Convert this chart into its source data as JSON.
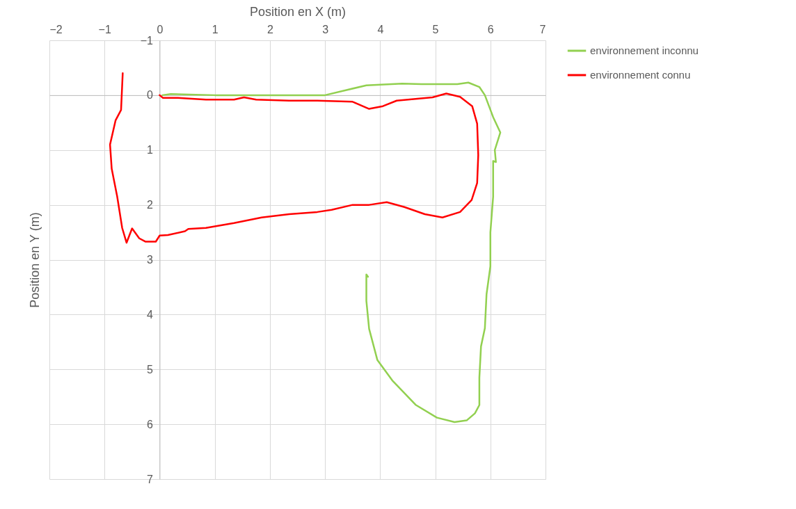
{
  "chart_data": {
    "type": "line",
    "xlabel": "Position en X (m)",
    "ylabel": "Position en Y (m)",
    "xlim": [
      -2,
      7
    ],
    "xticks": [
      -2,
      -1,
      0,
      1,
      2,
      3,
      4,
      5,
      6,
      7
    ],
    "ylim": [
      7,
      -1
    ],
    "yticks": [
      -1,
      0,
      1,
      2,
      3,
      4,
      5,
      6,
      7
    ],
    "grid": true,
    "legend": "right",
    "marker": "none",
    "line_style": "solid",
    "series": [
      {
        "name": "environnement inconnu",
        "color": "#92d050",
        "x": [
          0.05,
          0.2,
          1.0,
          2.0,
          3.0,
          3.75,
          4.4,
          4.75,
          5.4,
          5.6,
          5.8,
          5.9,
          6.05,
          6.18,
          6.08,
          6.1,
          6.05,
          6.05,
          6.0,
          6.0,
          5.93,
          5.9,
          5.83,
          5.8,
          5.8,
          5.72,
          5.57,
          5.35,
          5.03,
          4.65,
          4.22,
          3.95,
          3.8,
          3.75,
          3.75,
          3.78
        ],
        "values": [
          0.0,
          -0.02,
          0.0,
          0.0,
          0.0,
          -0.18,
          -0.21,
          -0.2,
          -0.2,
          -0.23,
          -0.15,
          0.0,
          0.4,
          0.68,
          1.0,
          1.22,
          1.2,
          1.85,
          2.5,
          3.12,
          3.63,
          4.25,
          4.58,
          5.15,
          5.65,
          5.8,
          5.93,
          5.96,
          5.88,
          5.65,
          5.2,
          4.83,
          4.26,
          3.75,
          3.27,
          3.31
        ]
      },
      {
        "name": "environnement connu",
        "color": "#ff0000",
        "x": [
          0,
          0.06,
          0.33,
          0.84,
          1.35,
          1.53,
          1.75,
          2.35,
          2.86,
          3.5,
          3.8,
          4.05,
          4.3,
          4.95,
          5.2,
          5.45,
          5.67,
          5.76,
          5.78,
          5.76,
          5.66,
          5.45,
          5.13,
          4.81,
          4.44,
          4.12,
          3.8,
          3.5,
          3.12,
          2.86,
          2.35,
          1.85,
          1.35,
          0.84,
          0.52,
          0.46,
          0.15,
          0,
          -0.07,
          -0.26,
          -0.37,
          -0.5,
          -0.6,
          -0.68,
          -0.77,
          -0.87,
          -0.9,
          -0.8,
          -0.7,
          -0.67
        ],
        "values": [
          0,
          0.05,
          0.05,
          0.08,
          0.08,
          0.04,
          0.08,
          0.1,
          0.1,
          0.12,
          0.25,
          0.2,
          0.1,
          0.04,
          -0.03,
          0.03,
          0.2,
          0.52,
          1.09,
          1.6,
          1.91,
          2.13,
          2.23,
          2.17,
          2.04,
          1.95,
          2.0,
          2.0,
          2.09,
          2.13,
          2.17,
          2.23,
          2.33,
          2.42,
          2.44,
          2.48,
          2.55,
          2.56,
          2.67,
          2.67,
          2.61,
          2.43,
          2.69,
          2.42,
          1.85,
          1.34,
          0.9,
          0.46,
          0.27,
          -0.4
        ]
      }
    ]
  }
}
